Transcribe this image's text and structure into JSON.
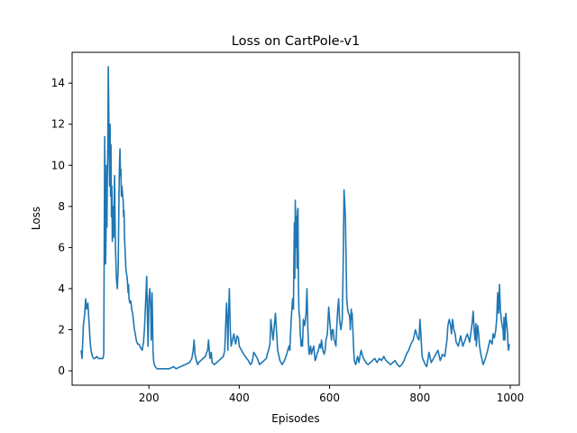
{
  "chart_data": {
    "type": "line",
    "title": "Loss on CartPole-v1",
    "xlabel": "Episodes",
    "ylabel": "Loss",
    "xlim": [
      30,
      1020
    ],
    "ylim": [
      -0.7,
      15.5
    ],
    "xticks": [
      200,
      400,
      600,
      800,
      1000
    ],
    "yticks": [
      0,
      2,
      4,
      6,
      8,
      10,
      12,
      14
    ],
    "grid": false,
    "legend": "none",
    "series": [
      {
        "color": "#1f77b4",
        "x": [
          50,
          52,
          55,
          58,
          60,
          62,
          65,
          68,
          70,
          72,
          75,
          78,
          80,
          85,
          88,
          90,
          95,
          98,
          100,
          102,
          103,
          104,
          105,
          106,
          107,
          108,
          109,
          110,
          111,
          112,
          113,
          114,
          115,
          116,
          117,
          118,
          119,
          120,
          121,
          122,
          123,
          124,
          125,
          126,
          128,
          130,
          132,
          133,
          134,
          135,
          136,
          137,
          138,
          139,
          140,
          141,
          142,
          143,
          144,
          145,
          146,
          147,
          148,
          149,
          150,
          152,
          154,
          155,
          156,
          158,
          160,
          162,
          164,
          165,
          168,
          170,
          172,
          175,
          178,
          180,
          182,
          185,
          188,
          190,
          192,
          195,
          198,
          200,
          202,
          204,
          205,
          206,
          207,
          208,
          209,
          210,
          211,
          212,
          214,
          216,
          218,
          220,
          225,
          230,
          235,
          240,
          245,
          250,
          255,
          260,
          265,
          270,
          275,
          280,
          285,
          290,
          295,
          298,
          300,
          302,
          305,
          308,
          310,
          315,
          320,
          325,
          328,
          330,
          332,
          335,
          338,
          340,
          345,
          350,
          355,
          360,
          365,
          368,
          370,
          372,
          374,
          375,
          376,
          378,
          380,
          382,
          385,
          388,
          390,
          392,
          395,
          398,
          400,
          410,
          420,
          425,
          428,
          430,
          432,
          435,
          440,
          445,
          450,
          455,
          460,
          462,
          465,
          468,
          470,
          475,
          480,
          485,
          490,
          495,
          500,
          505,
          510,
          512,
          515,
          518,
          520,
          521,
          522,
          523,
          524,
          525,
          526,
          527,
          528,
          529,
          530,
          531,
          532,
          534,
          535,
          536,
          537,
          538,
          540,
          542,
          545,
          548,
          550,
          552,
          554,
          555,
          556,
          558,
          560,
          562,
          565,
          568,
          570,
          572,
          575,
          578,
          580,
          582,
          585,
          588,
          590,
          592,
          595,
          598,
          600,
          602,
          604,
          605,
          606,
          608,
          610,
          612,
          614,
          615,
          616,
          618,
          620,
          622,
          625,
          628,
          630,
          632,
          635,
          638,
          640,
          642,
          644,
          645,
          646,
          647,
          648,
          649,
          650,
          651,
          652,
          653,
          654,
          655,
          656,
          658,
          660,
          662,
          665,
          668,
          670,
          672,
          675,
          678,
          680,
          685,
          690,
          695,
          700,
          705,
          710,
          715,
          720,
          725,
          730,
          735,
          740,
          745,
          750,
          755,
          760,
          765,
          770,
          775,
          780,
          785,
          790,
          795,
          798,
          800,
          802,
          804,
          805,
          806,
          808,
          810,
          812,
          815,
          818,
          820,
          825,
          830,
          835,
          840,
          845,
          850,
          855,
          860,
          862,
          865,
          868,
          870,
          872,
          875,
          878,
          880,
          885,
          890,
          895,
          900,
          905,
          910,
          915,
          918,
          920,
          922,
          924,
          925,
          926,
          928,
          930,
          932,
          935,
          938,
          940,
          945,
          950,
          955,
          960,
          962,
          965,
          968,
          970,
          972,
          974,
          975,
          976,
          978,
          980,
          982,
          984,
          985,
          986,
          988,
          990,
          992,
          994,
          995,
          996,
          998
        ],
        "y": [
          1.0,
          0.6,
          2.2,
          2.8,
          3.5,
          3.0,
          3.3,
          2.2,
          1.4,
          1.0,
          0.7,
          0.6,
          0.6,
          0.7,
          0.6,
          0.6,
          0.6,
          0.6,
          0.8,
          11.4,
          8.0,
          5.2,
          6.5,
          10.0,
          7.0,
          9.5,
          11.0,
          14.8,
          13.0,
          10.5,
          9.0,
          12.0,
          8.5,
          11.0,
          7.5,
          9.0,
          6.3,
          7.0,
          8.0,
          6.5,
          8.3,
          9.5,
          7.5,
          6.0,
          4.5,
          4.0,
          5.0,
          7.0,
          9.0,
          10.2,
          10.8,
          9.5,
          9.8,
          8.5,
          9.0,
          8.8,
          8.5,
          8.3,
          7.5,
          7.8,
          6.5,
          6.0,
          5.5,
          5.0,
          4.8,
          4.5,
          3.8,
          4.2,
          3.5,
          3.3,
          3.4,
          3.0,
          2.8,
          2.6,
          2.0,
          1.8,
          1.5,
          1.3,
          1.3,
          1.2,
          1.1,
          1.0,
          1.4,
          2.0,
          3.0,
          4.6,
          1.2,
          3.5,
          4.0,
          3.0,
          1.5,
          2.2,
          3.8,
          2.5,
          1.0,
          0.6,
          0.4,
          0.3,
          0.2,
          0.15,
          0.1,
          0.1,
          0.1,
          0.1,
          0.1,
          0.1,
          0.1,
          0.15,
          0.2,
          0.1,
          0.15,
          0.2,
          0.25,
          0.3,
          0.35,
          0.4,
          0.6,
          1.0,
          1.5,
          0.8,
          0.5,
          0.3,
          0.4,
          0.5,
          0.6,
          0.7,
          0.9,
          1.0,
          1.5,
          0.6,
          0.9,
          0.4,
          0.3,
          0.4,
          0.5,
          0.6,
          0.7,
          1.0,
          2.2,
          3.3,
          2.0,
          1.0,
          2.5,
          4.0,
          2.0,
          1.2,
          1.5,
          1.8,
          1.5,
          1.3,
          1.7,
          1.6,
          1.2,
          0.8,
          0.5,
          0.3,
          0.4,
          0.6,
          0.9,
          0.8,
          0.6,
          0.3,
          0.4,
          0.5,
          0.6,
          0.8,
          1.0,
          1.3,
          2.5,
          1.5,
          2.8,
          1.0,
          0.5,
          0.3,
          0.5,
          0.8,
          1.2,
          1.0,
          2.5,
          3.5,
          3.0,
          5.5,
          7.2,
          4.5,
          8.3,
          7.0,
          6.0,
          7.5,
          5.0,
          7.8,
          7.9,
          4.5,
          3.0,
          2.5,
          1.8,
          1.6,
          1.2,
          1.5,
          1.2,
          2.5,
          2.2,
          2.8,
          4.0,
          2.0,
          1.0,
          0.8,
          1.0,
          1.2,
          0.8,
          1.0,
          1.2,
          0.5,
          0.6,
          0.8,
          1.0,
          1.3,
          1.1,
          1.5,
          1.0,
          0.8,
          1.0,
          1.5,
          1.8,
          3.1,
          2.5,
          2.0,
          1.5,
          1.8,
          2.0,
          2.0,
          1.5,
          1.4,
          1.2,
          1.8,
          2.2,
          3.0,
          3.5,
          2.5,
          2.0,
          2.5,
          5.0,
          8.8,
          7.5,
          3.5,
          3.0,
          2.8,
          2.7,
          2.5,
          2.0,
          2.5,
          3.0,
          2.5,
          2.8,
          2.3,
          1.8,
          1.2,
          0.8,
          0.5,
          0.4,
          0.3,
          0.5,
          0.7,
          0.4,
          0.8,
          1.0,
          0.8,
          0.6,
          0.5,
          0.4,
          0.3,
          0.4,
          0.5,
          0.6,
          0.4,
          0.6,
          0.5,
          0.7,
          0.5,
          0.4,
          0.3,
          0.4,
          0.5,
          0.3,
          0.2,
          0.3,
          0.5,
          0.8,
          1.0,
          1.3,
          1.5,
          2.0,
          1.6,
          1.5,
          2.5,
          1.8,
          1.0,
          0.7,
          0.6,
          0.5,
          0.4,
          0.3,
          0.2,
          0.6,
          0.9,
          0.4,
          0.6,
          0.8,
          1.0,
          0.5,
          0.8,
          0.7,
          1.5,
          2.2,
          2.5,
          2.2,
          1.8,
          2.5,
          2.0,
          1.8,
          1.4,
          1.2,
          1.7,
          1.2,
          1.5,
          1.8,
          1.4,
          2.2,
          2.9,
          2.0,
          1.5,
          2.3,
          1.2,
          1.6,
          2.2,
          1.8,
          1.2,
          0.8,
          0.5,
          0.3,
          0.6,
          1.0,
          1.5,
          1.3,
          1.8,
          1.6,
          2.0,
          2.5,
          3.8,
          2.8,
          3.2,
          4.2,
          3.0,
          2.5,
          2.2,
          2.0,
          1.5,
          2.6,
          1.5,
          2.8,
          2.3,
          1.8,
          1.2,
          1.0,
          1.3
        ]
      }
    ]
  }
}
